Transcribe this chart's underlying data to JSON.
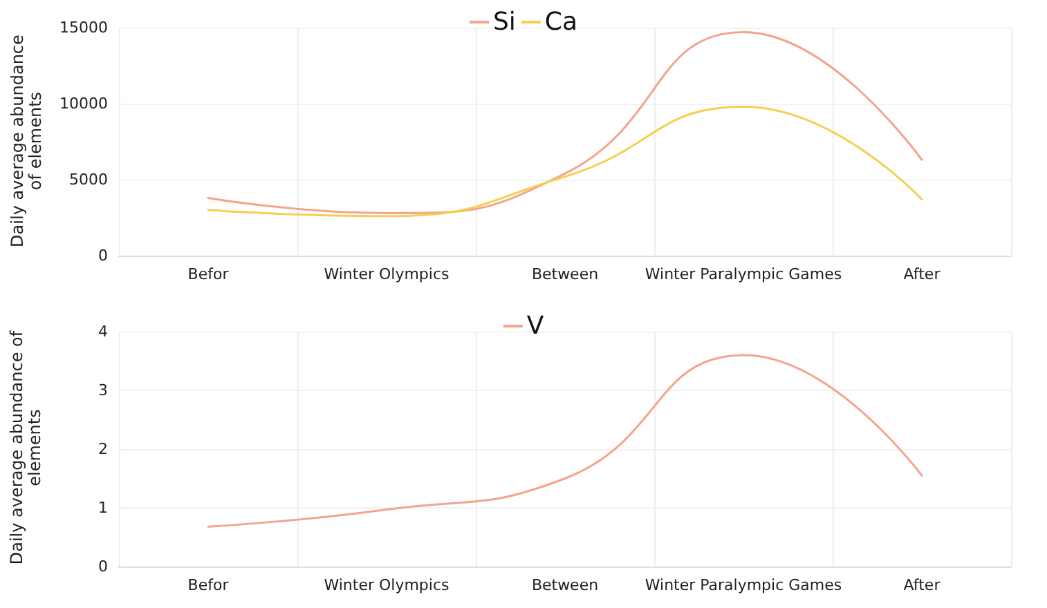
{
  "chart_data": [
    {
      "type": "line",
      "ylabel": "Daily average abundance of elements",
      "categories": [
        "Befor",
        "Winter Olympics",
        "Between",
        "Winter Paralympic Games",
        "After"
      ],
      "ylim": [
        0,
        15000
      ],
      "yticks": [
        0,
        5000,
        10000,
        15000
      ],
      "grid": true,
      "legend": "top",
      "marker": "none",
      "line_style": "solid",
      "series": [
        {
          "name": "Si",
          "color": "#f4a48c",
          "values": [
            3800,
            2800,
            5400,
            14700,
            6300
          ]
        },
        {
          "name": "Ca",
          "color": "#f5cf4e",
          "values": [
            3000,
            2600,
            5200,
            9800,
            3700
          ]
        }
      ]
    },
    {
      "type": "line",
      "ylabel": "Daily average abundance of elements",
      "categories": [
        "Befor",
        "Winter Olympics",
        "Between",
        "Winter Paralympic Games",
        "After"
      ],
      "ylim": [
        0,
        4
      ],
      "yticks": [
        0,
        1,
        2,
        3,
        4
      ],
      "grid": true,
      "legend": "top",
      "marker": "none",
      "line_style": "solid",
      "series": [
        {
          "name": "V",
          "color": "#f4a48c",
          "values": [
            0.68,
            0.97,
            1.5,
            3.6,
            1.55
          ]
        }
      ]
    }
  ]
}
